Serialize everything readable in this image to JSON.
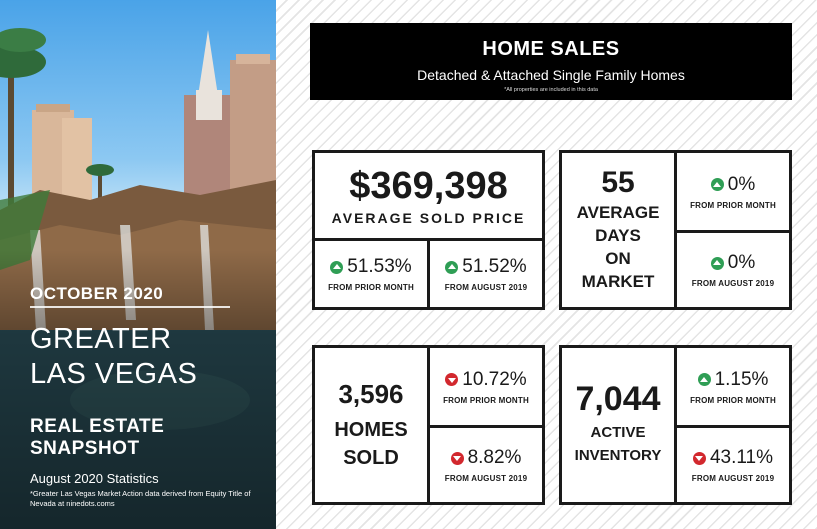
{
  "left_panel": {
    "month": "OCTOBER 2020",
    "region_line1": "GREATER",
    "region_line2": "LAS VEGAS",
    "snapshot_line1": "REAL ESTATE",
    "snapshot_line2": "SNAPSHOT",
    "stats_label": "August 2020 Statistics",
    "note": "*Greater Las Vegas Market Action data derived from Equity Title of Nevada at ninedots.coms"
  },
  "banner": {
    "title": "HOME SALES",
    "subtitle": "Detached & Attached Single Family Homes",
    "note": "*All properties are included in this data"
  },
  "price_card": {
    "value": "$369,398",
    "label": "AVERAGE SOLD PRICE",
    "prior_month": {
      "pct": "51.53%",
      "label": "FROM PRIOR MONTH",
      "direction": "up"
    },
    "prior_year": {
      "pct": "51.52%",
      "label": "FROM AUGUST 2019",
      "direction": "up"
    }
  },
  "days_card": {
    "value": "55",
    "label_lines": [
      "AVERAGE",
      "DAYS",
      "ON",
      "MARKET"
    ],
    "prior_month": {
      "pct": "0%",
      "label": "FROM PRIOR MONTH",
      "direction": "up"
    },
    "prior_year": {
      "pct": "0%",
      "label": "FROM AUGUST 2019",
      "direction": "up"
    }
  },
  "sold_card": {
    "value": "3,596",
    "label_lines": [
      "HOMES",
      "SOLD"
    ],
    "prior_month": {
      "pct": "10.72%",
      "label": "FROM PRIOR MONTH",
      "direction": "down"
    },
    "prior_year": {
      "pct": "8.82%",
      "label": "FROM AUGUST 2019",
      "direction": "down"
    }
  },
  "inventory_card": {
    "value": "7,044",
    "label_lines": [
      "ACTIVE",
      "INVENTORY"
    ],
    "prior_month": {
      "pct": "1.15%",
      "label": "FROM PRIOR MONTH",
      "direction": "up"
    },
    "prior_year": {
      "pct": "43.11%",
      "label": "FROM AUGUST 2019",
      "direction": "down"
    }
  },
  "colors": {
    "up": "#2f9e55",
    "down": "#d2282e",
    "border": "#1a1a1a"
  }
}
